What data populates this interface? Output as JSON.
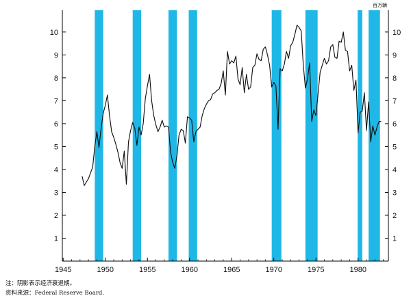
{
  "chart_data": {
    "type": "line",
    "unit_label": "百万辆",
    "x_ticks": [
      1945,
      1950,
      1955,
      1960,
      1965,
      1970,
      1975,
      1980
    ],
    "y_ticks": [
      1,
      2,
      3,
      4,
      5,
      6,
      7,
      8,
      9,
      10
    ],
    "xlim": [
      1944.9,
      1983.6
    ],
    "ylim": [
      0,
      10.95
    ],
    "grid": false,
    "recession_shading_color": "#1fb7e6",
    "recessions": [
      [
        1948.75,
        1949.75
      ],
      [
        1953.25,
        1954.25
      ],
      [
        1957.5,
        1958.5
      ],
      [
        1959.9,
        1960.9
      ],
      [
        1969.75,
        1970.9
      ],
      [
        1973.75,
        1975.2
      ],
      [
        1979.95,
        1980.5
      ],
      [
        1981.25,
        1982.6
      ]
    ],
    "series": [
      {
        "values": [
          [
            1947.25,
            3.7
          ],
          [
            1947.5,
            3.3
          ],
          [
            1947.75,
            3.45
          ],
          [
            1948.0,
            3.6
          ],
          [
            1948.25,
            3.85
          ],
          [
            1948.5,
            4.1
          ],
          [
            1948.75,
            5.0
          ],
          [
            1949.0,
            5.65
          ],
          [
            1949.25,
            4.95
          ],
          [
            1949.5,
            5.8
          ],
          [
            1949.75,
            6.45
          ],
          [
            1950.0,
            6.8
          ],
          [
            1950.25,
            7.25
          ],
          [
            1950.5,
            6.35
          ],
          [
            1950.75,
            5.65
          ],
          [
            1951.0,
            5.4
          ],
          [
            1951.25,
            5.1
          ],
          [
            1951.5,
            4.75
          ],
          [
            1951.75,
            4.3
          ],
          [
            1952.0,
            4.05
          ],
          [
            1952.25,
            4.8
          ],
          [
            1952.5,
            3.35
          ],
          [
            1952.75,
            5.2
          ],
          [
            1953.0,
            5.7
          ],
          [
            1953.25,
            6.05
          ],
          [
            1953.5,
            5.8
          ],
          [
            1953.75,
            5.05
          ],
          [
            1954.0,
            5.85
          ],
          [
            1954.25,
            5.5
          ],
          [
            1954.5,
            6.0
          ],
          [
            1954.75,
            7.1
          ],
          [
            1955.0,
            7.65
          ],
          [
            1955.25,
            8.15
          ],
          [
            1955.5,
            7.0
          ],
          [
            1955.75,
            6.35
          ],
          [
            1956.0,
            5.95
          ],
          [
            1956.25,
            5.65
          ],
          [
            1956.5,
            5.85
          ],
          [
            1956.75,
            6.15
          ],
          [
            1957.0,
            5.85
          ],
          [
            1957.25,
            5.9
          ],
          [
            1957.5,
            5.85
          ],
          [
            1957.75,
            4.75
          ],
          [
            1958.0,
            4.3
          ],
          [
            1958.25,
            4.05
          ],
          [
            1958.5,
            4.6
          ],
          [
            1958.75,
            5.5
          ],
          [
            1959.0,
            5.75
          ],
          [
            1959.25,
            5.7
          ],
          [
            1959.5,
            5.15
          ],
          [
            1959.75,
            6.3
          ],
          [
            1960.0,
            6.25
          ],
          [
            1960.25,
            6.15
          ],
          [
            1960.5,
            5.2
          ],
          [
            1960.75,
            5.65
          ],
          [
            1961.0,
            5.75
          ],
          [
            1961.25,
            5.85
          ],
          [
            1961.5,
            6.35
          ],
          [
            1961.75,
            6.65
          ],
          [
            1962.0,
            6.85
          ],
          [
            1962.25,
            7.0
          ],
          [
            1962.5,
            7.05
          ],
          [
            1962.75,
            7.3
          ],
          [
            1963.0,
            7.35
          ],
          [
            1963.25,
            7.45
          ],
          [
            1963.5,
            7.5
          ],
          [
            1963.75,
            7.75
          ],
          [
            1964.0,
            8.3
          ],
          [
            1964.25,
            7.25
          ],
          [
            1964.5,
            9.15
          ],
          [
            1964.75,
            8.6
          ],
          [
            1965.0,
            8.75
          ],
          [
            1965.25,
            8.65
          ],
          [
            1965.5,
            8.95
          ],
          [
            1965.75,
            7.95
          ],
          [
            1966.0,
            7.7
          ],
          [
            1966.25,
            8.45
          ],
          [
            1966.5,
            7.35
          ],
          [
            1966.75,
            8.15
          ],
          [
            1967.0,
            7.5
          ],
          [
            1967.25,
            7.6
          ],
          [
            1967.5,
            8.45
          ],
          [
            1967.75,
            8.55
          ],
          [
            1968.0,
            9.05
          ],
          [
            1968.25,
            8.8
          ],
          [
            1968.5,
            8.75
          ],
          [
            1968.75,
            9.25
          ],
          [
            1969.0,
            9.35
          ],
          [
            1969.25,
            9.0
          ],
          [
            1969.5,
            8.55
          ],
          [
            1969.75,
            7.6
          ],
          [
            1970.0,
            7.8
          ],
          [
            1970.25,
            7.65
          ],
          [
            1970.5,
            5.75
          ],
          [
            1970.75,
            8.4
          ],
          [
            1971.0,
            8.3
          ],
          [
            1971.25,
            8.6
          ],
          [
            1971.5,
            9.15
          ],
          [
            1971.75,
            8.85
          ],
          [
            1972.0,
            9.4
          ],
          [
            1972.25,
            9.55
          ],
          [
            1972.5,
            9.9
          ],
          [
            1972.75,
            10.3
          ],
          [
            1973.0,
            10.2
          ],
          [
            1973.25,
            10.05
          ],
          [
            1973.5,
            8.55
          ],
          [
            1973.75,
            7.55
          ],
          [
            1974.0,
            7.95
          ],
          [
            1974.25,
            8.65
          ],
          [
            1974.5,
            6.1
          ],
          [
            1974.75,
            6.6
          ],
          [
            1975.0,
            6.35
          ],
          [
            1975.25,
            7.3
          ],
          [
            1975.5,
            8.25
          ],
          [
            1975.75,
            8.55
          ],
          [
            1976.0,
            8.85
          ],
          [
            1976.25,
            8.6
          ],
          [
            1976.5,
            8.75
          ],
          [
            1976.75,
            9.35
          ],
          [
            1977.0,
            9.45
          ],
          [
            1977.25,
            8.9
          ],
          [
            1977.5,
            8.85
          ],
          [
            1977.75,
            9.6
          ],
          [
            1978.0,
            9.55
          ],
          [
            1978.25,
            10.0
          ],
          [
            1978.5,
            9.2
          ],
          [
            1978.75,
            9.15
          ],
          [
            1979.0,
            8.3
          ],
          [
            1979.25,
            8.55
          ],
          [
            1979.5,
            7.45
          ],
          [
            1979.75,
            7.9
          ],
          [
            1980.0,
            5.6
          ],
          [
            1980.25,
            6.5
          ],
          [
            1980.5,
            6.55
          ],
          [
            1980.75,
            7.35
          ],
          [
            1981.0,
            5.7
          ],
          [
            1981.25,
            6.95
          ],
          [
            1981.5,
            5.2
          ],
          [
            1981.75,
            5.9
          ],
          [
            1982.0,
            5.5
          ],
          [
            1982.25,
            5.85
          ],
          [
            1982.5,
            6.1
          ],
          [
            1982.75,
            6.1
          ]
        ]
      }
    ]
  },
  "footnotes": {
    "note": "注：阴影表示经济衰退期。",
    "source": "资料来源：Federal Reserve Board."
  }
}
